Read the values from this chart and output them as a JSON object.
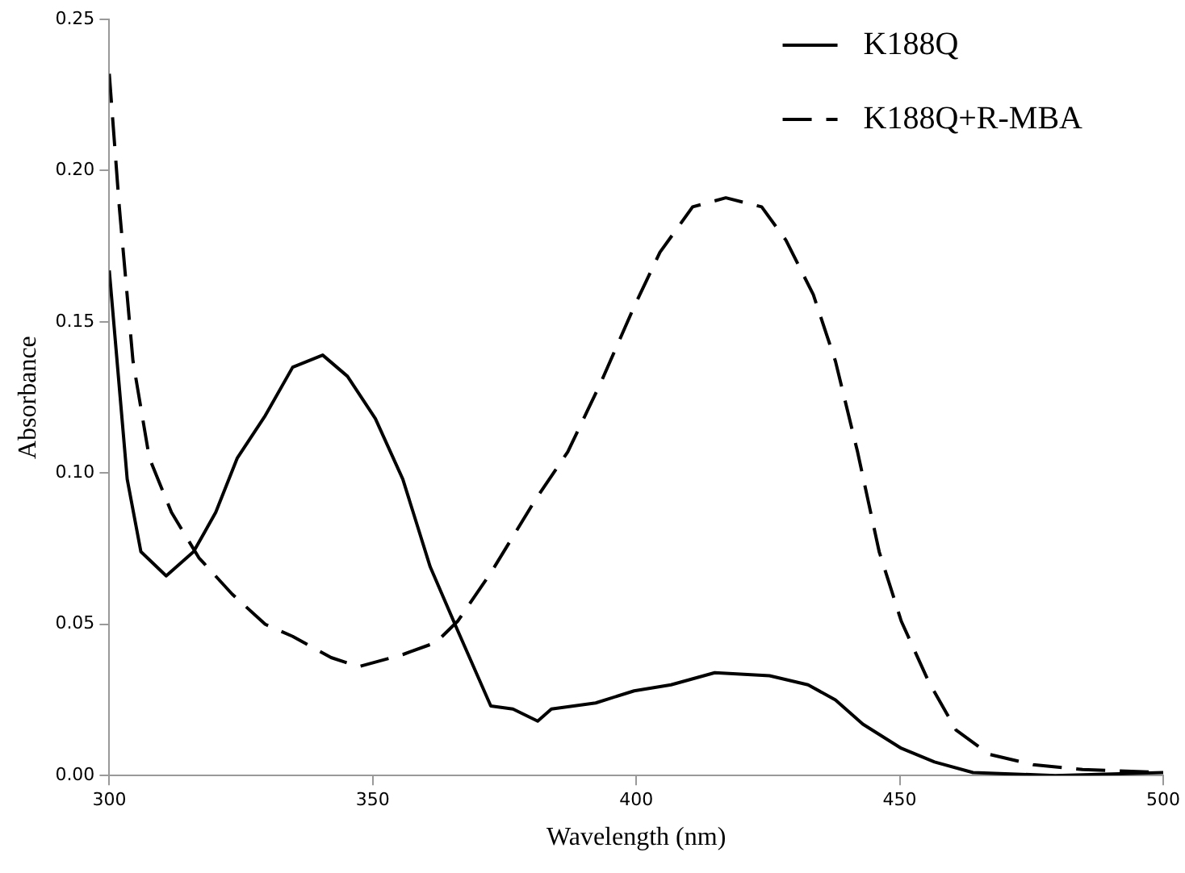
{
  "chart_data": {
    "type": "line",
    "xlabel": "Wavelength (nm)",
    "ylabel": "Absorbance",
    "xlim": [
      300,
      500
    ],
    "xticks": [
      300,
      350,
      400,
      450,
      500
    ],
    "ylim": [
      0,
      0.25
    ],
    "yticks": [
      {
        "value": 0,
        "label": "0.00"
      },
      {
        "value": 0.05,
        "label": "0.05"
      },
      {
        "value": 0.1,
        "label": "0.10"
      },
      {
        "value": 0.15,
        "label": "0.15"
      },
      {
        "value": 0.2,
        "label": "0.20"
      },
      {
        "value": 0.25,
        "label": "0.25"
      }
    ],
    "grid": false,
    "legend": "top right",
    "marker": "none",
    "series": [
      {
        "name": "K188Q",
        "color": "#000000",
        "line_style": "solid",
        "x": [
          300,
          303.4,
          306,
          310.8,
          316,
          320.2,
          324.3,
          329.6,
          334.8,
          340.5,
          345.2,
          350.5,
          355.7,
          360.9,
          366.1,
          372.4,
          376.6,
          381.3,
          383.9,
          392.3,
          399.6,
          406.6,
          414.9,
          425.3,
          432.6,
          437.8,
          443,
          450.3,
          456.6,
          463.9,
          479.5,
          500
        ],
        "values": [
          0.167,
          0.098,
          0.074,
          0.066,
          0.074,
          0.087,
          0.105,
          0.119,
          0.135,
          0.139,
          0.132,
          0.118,
          0.098,
          0.069,
          0.048,
          0.023,
          0.022,
          0.018,
          0.022,
          0.024,
          0.028,
          0.03,
          0.034,
          0.033,
          0.03,
          0.025,
          0.017,
          0.009,
          0.0045,
          0.001,
          0,
          0.001
        ]
      },
      {
        "name": "K188Q+R-MBA",
        "color": "#000000",
        "line_style": "dashed",
        "x": [
          300,
          301.9,
          304.5,
          307.6,
          311.8,
          317,
          323.3,
          329.6,
          334.8,
          342.1,
          347.3,
          355.7,
          362,
          366.1,
          372.4,
          380.8,
          387,
          393.3,
          399.6,
          404.5,
          410.7,
          417,
          423.8,
          428.4,
          433.6,
          437.8,
          442,
          446.1,
          450.3,
          455.5,
          460.7,
          467,
          475.3,
          484.7,
          500
        ],
        "values": [
          0.232,
          0.188,
          0.137,
          0.105,
          0.087,
          0.072,
          0.06,
          0.05,
          0.046,
          0.039,
          0.036,
          0.04,
          0.044,
          0.051,
          0.067,
          0.091,
          0.107,
          0.13,
          0.155,
          0.173,
          0.188,
          0.191,
          0.188,
          0.177,
          0.159,
          0.137,
          0.107,
          0.074,
          0.051,
          0.031,
          0.015,
          0.007,
          0.0036,
          0.002,
          0.001
        ]
      }
    ]
  }
}
